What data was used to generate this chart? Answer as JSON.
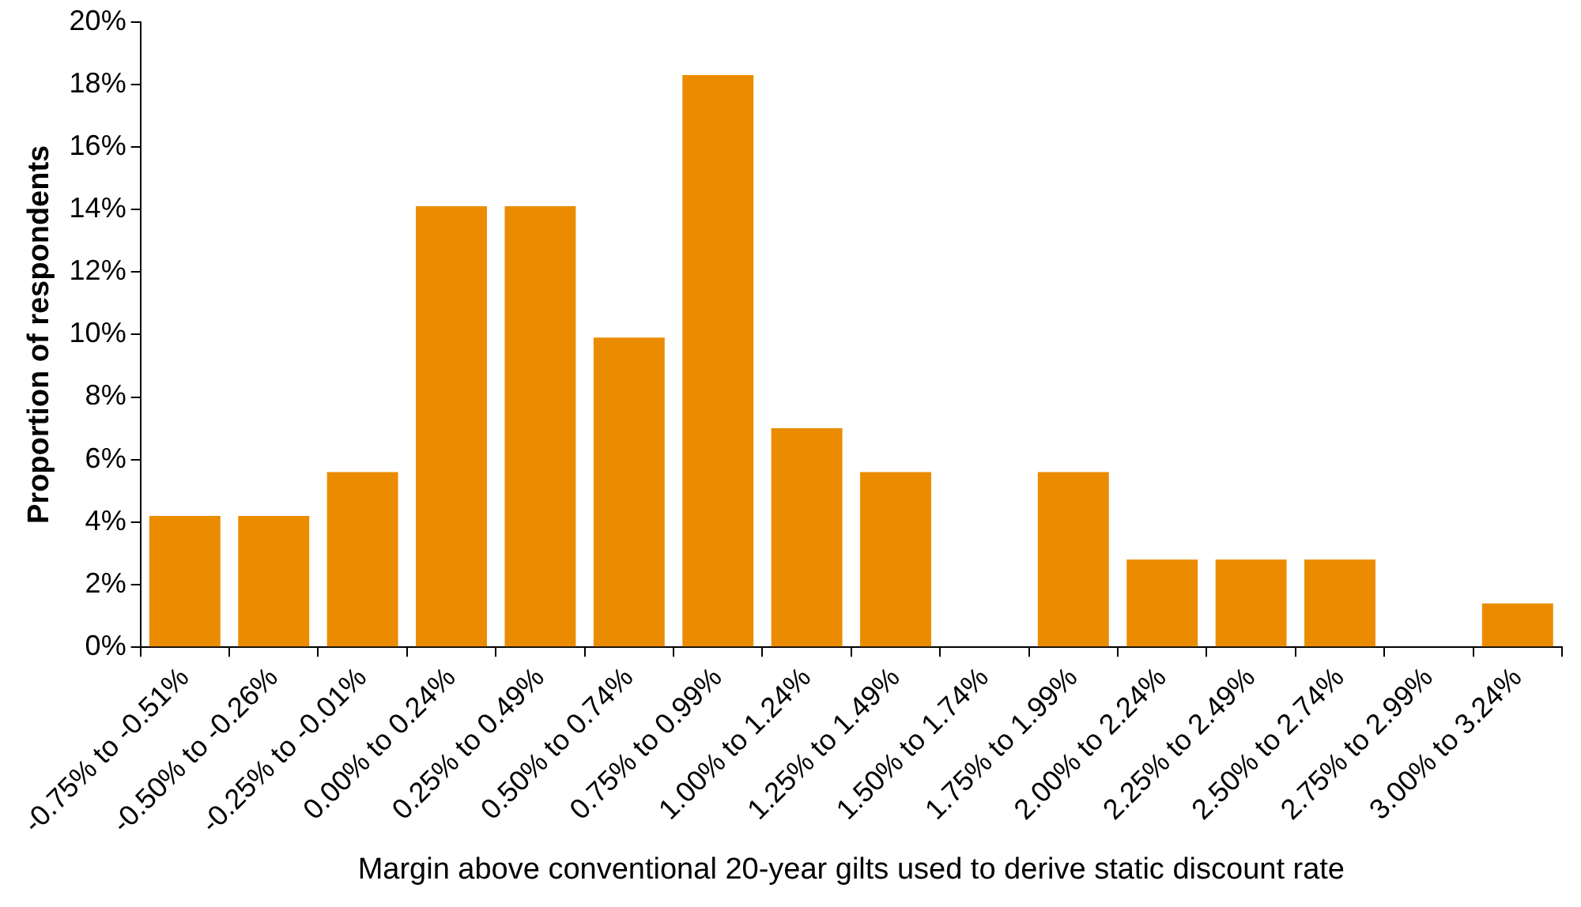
{
  "chart_data": {
    "type": "bar",
    "xlabel": "Margin above conventional 20-year gilts used to derive static discount rate",
    "ylabel": "Proportion of respondents",
    "categories": [
      "-0.75% to -0.51%",
      "-0.50% to -0.26%",
      "-0.25% to -0.01%",
      "0.00% to 0.24%",
      "0.25% to 0.49%",
      "0.50% to 0.74%",
      "0.75% to 0.99%",
      "1.00% to 1.24%",
      "1.25% to 1.49%",
      "1.50% to 1.74%",
      "1.75% to 1.99%",
      "2.00% to 2.24%",
      "2.25% to 2.49%",
      "2.50% to 2.74%",
      "2.75% to 2.99%",
      "3.00% to 3.24%"
    ],
    "values": [
      4.2,
      4.2,
      5.6,
      14.1,
      14.1,
      9.9,
      18.3,
      7.0,
      5.6,
      0,
      5.6,
      2.8,
      2.8,
      2.8,
      0,
      1.4
    ],
    "color": "#eb8c00",
    "ylim": [
      0,
      20
    ],
    "yticks": [
      {
        "value": 0,
        "label": "0%"
      },
      {
        "value": 2,
        "label": "2%"
      },
      {
        "value": 4,
        "label": "4%"
      },
      {
        "value": 6,
        "label": "6%"
      },
      {
        "value": 8,
        "label": "8%"
      },
      {
        "value": 10,
        "label": "10%"
      },
      {
        "value": 12,
        "label": "12%"
      },
      {
        "value": 14,
        "label": "14%"
      },
      {
        "value": 16,
        "label": "16%"
      },
      {
        "value": 18,
        "label": "18%"
      },
      {
        "value": 20,
        "label": "20%"
      }
    ],
    "grid": false,
    "legend": false
  }
}
